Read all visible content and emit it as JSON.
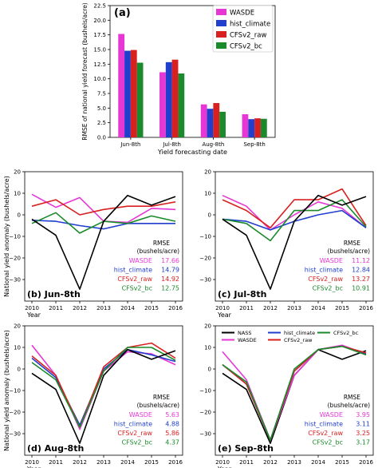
{
  "colors": {
    "NASS": "#000000",
    "WASDE": "#e637d5",
    "hist_climate": "#1f3fcc",
    "CFSv2_raw": "#d92020",
    "CFSv2_bc": "#1a8a2a"
  },
  "chart_data": [
    {
      "panel": "(a)",
      "type": "bar",
      "xlabel": "Yield forecasting date",
      "ylabel": "RMSE of national yield forecast (bushels/acre)",
      "ylim": [
        0,
        22.5
      ],
      "yticks": [
        "0.0",
        "2.5",
        "5.0",
        "7.5",
        "10.0",
        "12.5",
        "15.0",
        "17.5",
        "20.0",
        "22.5"
      ],
      "categories": [
        "Jun-8th",
        "Jul-8th",
        "Aug-8th",
        "Sep-8th"
      ],
      "legend": "top-right",
      "series": [
        {
          "name": "WASDE",
          "color": "#e637d5",
          "values": [
            17.66,
            11.12,
            5.63,
            3.95
          ]
        },
        {
          "name": "hist_climate",
          "color": "#1f3fcc",
          "values": [
            14.79,
            12.84,
            4.88,
            3.11
          ]
        },
        {
          "name": "CFSv2_raw",
          "color": "#d92020",
          "values": [
            14.92,
            13.27,
            5.86,
            3.25
          ]
        },
        {
          "name": "CFSv2_bc",
          "color": "#1a8a2a",
          "values": [
            12.75,
            10.91,
            4.37,
            3.17
          ]
        }
      ]
    },
    {
      "panel": "(b) Jun-8th",
      "type": "line",
      "xlabel": "Year",
      "ylabel": "National yield anomaly (bushels/acre)",
      "x": [
        "2010",
        "2011",
        "2012",
        "2013",
        "2014",
        "2015",
        "2016"
      ],
      "ylim": [
        -40,
        20
      ],
      "yticks": [
        "−30",
        "−20",
        "−10",
        "0",
        "10",
        "20"
      ],
      "rmse_title": [
        "RMSE",
        "(bushels/acre)"
      ],
      "series": [
        {
          "name": "NASS",
          "color": "#000000",
          "values": [
            -2,
            -9.5,
            -34.5,
            -3,
            9,
            4.5,
            8.5
          ]
        },
        {
          "name": "WASDE",
          "color": "#e637d5",
          "values": [
            9.5,
            3.5,
            8,
            -3,
            -3.5,
            3,
            2.5
          ]
        },
        {
          "name": "hist_climate",
          "color": "#1f3fcc",
          "values": [
            -2.5,
            -3,
            -5,
            -6.5,
            -4,
            -4,
            -4
          ]
        },
        {
          "name": "CFSv2_raw",
          "color": "#d92020",
          "values": [
            4,
            7,
            0,
            2.5,
            4,
            4,
            6
          ]
        },
        {
          "name": "CFSv2_bc",
          "color": "#1a8a2a",
          "values": [
            -4,
            1,
            -8.5,
            -3,
            -4,
            -0.5,
            -3
          ]
        }
      ],
      "rmse": [
        {
          "name": "WASDE",
          "value": "17.66"
        },
        {
          "name": "hist_climate",
          "value": "14.79"
        },
        {
          "name": "CFSv2_raw",
          "value": "14.92"
        },
        {
          "name": "CFSv2_bc",
          "value": "12.75"
        }
      ]
    },
    {
      "panel": "(c) Jul-8th",
      "type": "line",
      "xlabel": "Year",
      "ylabel": "",
      "x": [
        "2010",
        "2011",
        "2012",
        "2013",
        "2014",
        "2015",
        "2016"
      ],
      "ylim": [
        -40,
        20
      ],
      "yticks": [
        "−30",
        "−20",
        "−10",
        "0",
        "10",
        "20"
      ],
      "rmse_title": [
        "RMSE",
        "(bushels/acre)"
      ],
      "series": [
        {
          "name": "NASS",
          "color": "#000000",
          "values": [
            -2,
            -9.5,
            -34.5,
            -3,
            9,
            4.5,
            8.5
          ]
        },
        {
          "name": "WASDE",
          "color": "#e637d5",
          "values": [
            9,
            4,
            -7,
            0,
            6,
            3,
            -6
          ]
        },
        {
          "name": "hist_climate",
          "color": "#1f3fcc",
          "values": [
            -2,
            -3,
            -7,
            -3,
            0,
            2,
            -6
          ]
        },
        {
          "name": "CFSv2_raw",
          "color": "#d92020",
          "values": [
            7,
            2,
            -6,
            7,
            7,
            12,
            -5
          ]
        },
        {
          "name": "CFSv2_bc",
          "color": "#1a8a2a",
          "values": [
            -2,
            -4,
            -12,
            2,
            2,
            7,
            -5.5
          ]
        }
      ],
      "rmse": [
        {
          "name": "WASDE",
          "value": "11.12"
        },
        {
          "name": "hist_climate",
          "value": "12.84"
        },
        {
          "name": "CFSv2_raw",
          "value": "13.27"
        },
        {
          "name": "CFSv2_bc",
          "value": "10.91"
        }
      ]
    },
    {
      "panel": "(d) Aug-8th",
      "type": "line",
      "xlabel": "Year",
      "ylabel": "National yield anomaly (bushels/acre)",
      "x": [
        "2010",
        "2011",
        "2012",
        "2013",
        "2014",
        "2015",
        "2016"
      ],
      "ylim": [
        -40,
        20
      ],
      "yticks": [
        "−30",
        "−20",
        "−10",
        "0",
        "10",
        "20"
      ],
      "rmse_title": [
        "RMSE",
        "(bushels/acre)"
      ],
      "series": [
        {
          "name": "NASS",
          "color": "#000000",
          "values": [
            -2,
            -9.5,
            -34.5,
            -3,
            9,
            4.5,
            8.5
          ]
        },
        {
          "name": "WASDE",
          "color": "#e637d5",
          "values": [
            11,
            -3,
            -28,
            -1,
            8,
            7,
            2
          ]
        },
        {
          "name": "hist_climate",
          "color": "#1f3fcc",
          "values": [
            5,
            -4,
            -26,
            0,
            9,
            6.5,
            3.5
          ]
        },
        {
          "name": "CFSv2_raw",
          "color": "#d92020",
          "values": [
            6,
            -3,
            -27,
            1,
            10,
            12,
            5
          ]
        },
        {
          "name": "CFSv2_bc",
          "color": "#1a8a2a",
          "values": [
            3,
            -5,
            -27,
            -1,
            10,
            10,
            4
          ]
        }
      ],
      "rmse": [
        {
          "name": "WASDE",
          "value": "5.63"
        },
        {
          "name": "hist_climate",
          "value": "4.88"
        },
        {
          "name": "CFSv2_raw",
          "value": "5.86"
        },
        {
          "name": "CFSv2_bc",
          "value": "4.37"
        }
      ]
    },
    {
      "panel": "(e) Sep-8th",
      "type": "line",
      "xlabel": "Year",
      "ylabel": "",
      "x": [
        "2010",
        "2011",
        "2012",
        "2013",
        "2014",
        "2015",
        "2016"
      ],
      "ylim": [
        -40,
        20
      ],
      "yticks": [
        "−30",
        "−20",
        "−10",
        "0",
        "10",
        "20"
      ],
      "rmse_title": [
        "RMSE",
        "(bushels/acre)"
      ],
      "legend": "top",
      "legend_entries": [
        "NASS",
        "WASDE",
        "hist_climate",
        "CFSv2_raw",
        "CFSv2_bc"
      ],
      "series": [
        {
          "name": "NASS",
          "color": "#000000",
          "values": [
            -2,
            -9.5,
            -34.5,
            -3,
            9,
            4.5,
            8.5
          ]
        },
        {
          "name": "WASDE",
          "color": "#e637d5",
          "values": [
            8,
            -5,
            -33,
            -3,
            9,
            11,
            7
          ]
        },
        {
          "name": "hist_climate",
          "color": "#1f3fcc",
          "values": [
            2,
            -7,
            -33,
            -1,
            9,
            10.5,
            7
          ]
        },
        {
          "name": "CFSv2_raw",
          "color": "#d92020",
          "values": [
            2,
            -7,
            -33,
            -1,
            9,
            10.5,
            7.5
          ]
        },
        {
          "name": "CFSv2_bc",
          "color": "#1a8a2a",
          "values": [
            2,
            -6,
            -33,
            0,
            9,
            10.5,
            6.5
          ]
        }
      ],
      "rmse": [
        {
          "name": "WASDE",
          "value": "3.95"
        },
        {
          "name": "hist_climate",
          "value": "3.11"
        },
        {
          "name": "CFSv2_raw",
          "value": "3.25"
        },
        {
          "name": "CFSv2_bc",
          "value": "3.17"
        }
      ]
    }
  ]
}
